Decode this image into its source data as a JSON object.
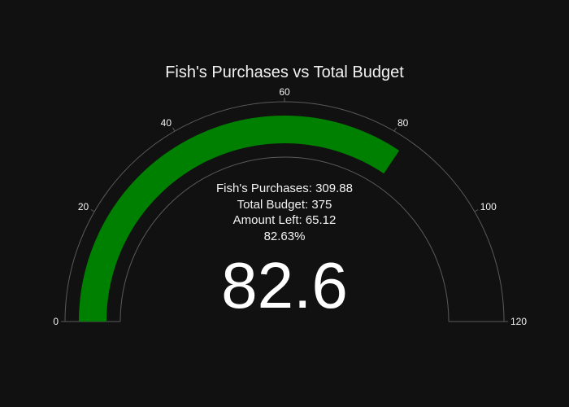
{
  "chart_data": {
    "type": "gauge",
    "title": "Fish's Purchases vs Total Budget",
    "value": 82.6,
    "value_text": "82.6",
    "range": [
      0,
      120
    ],
    "ticks": [
      {
        "value": 0,
        "label": "0"
      },
      {
        "value": 20,
        "label": "20"
      },
      {
        "value": 40,
        "label": "40"
      },
      {
        "value": 60,
        "label": "60"
      },
      {
        "value": 80,
        "label": "80"
      },
      {
        "value": 100,
        "label": "100"
      },
      {
        "value": 120,
        "label": "120"
      }
    ],
    "annotation_lines": [
      "Fish's Purchases: 309.88",
      "Total Budget: 375",
      "Amount Left: 65.12",
      "82.63%"
    ],
    "bar_color": "#008000",
    "background_color": "#111111",
    "text_color": "#f2f2f2"
  }
}
